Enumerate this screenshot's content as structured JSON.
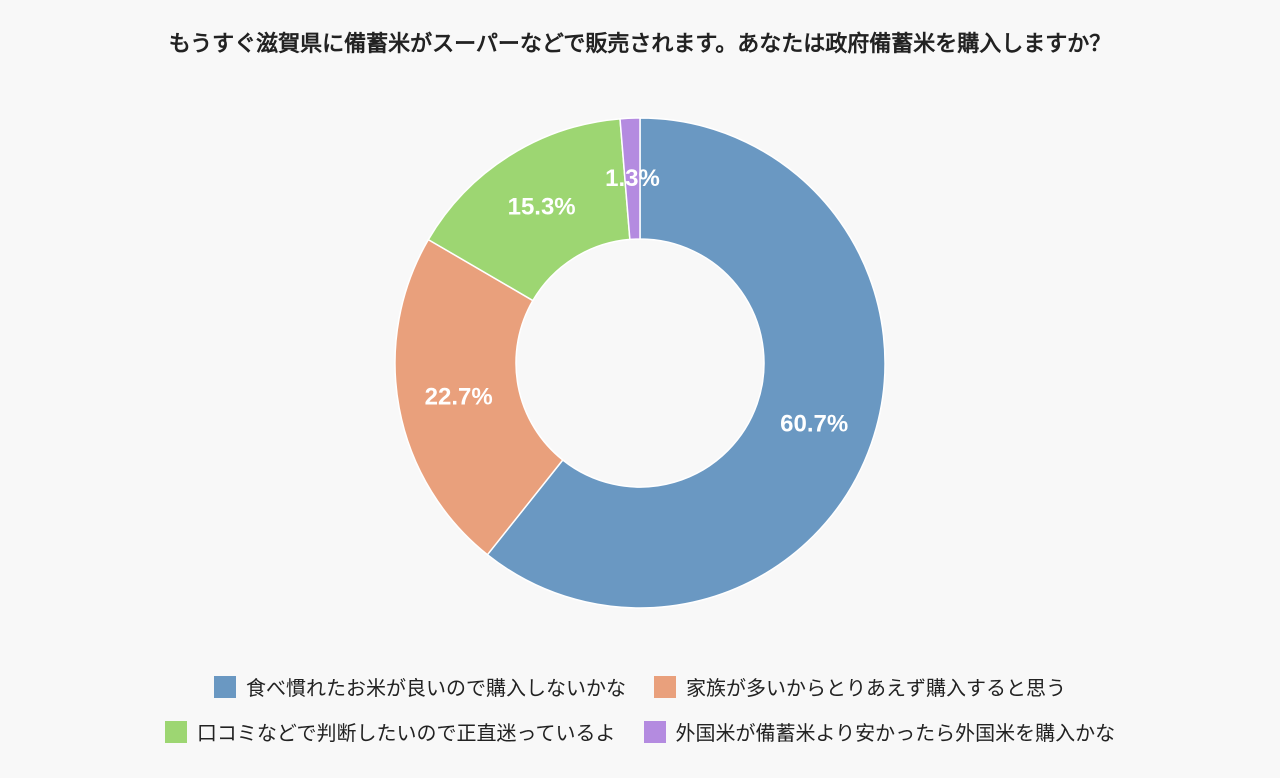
{
  "chart_data": {
    "type": "pie",
    "variant": "donut",
    "title": "もうすぐ滋賀県に備蓄米がスーパーなどで販売されます。あなたは政府備蓄米を購入しますか？",
    "legend_position": "bottom",
    "series": [
      {
        "categories": [
          "食べ慣れたお米が良いので購入しないかな",
          "家族が多いからとりあえず購入すると思う",
          "口コミなどで判断したいので正直迷っているよ",
          "外国米が備蓄米より安かったら外国米を購入かな"
        ],
        "values": [
          60.7,
          22.7,
          15.3,
          1.3
        ],
        "labels": [
          "60.7%",
          "22.7%",
          "15.3%",
          "1.3%"
        ],
        "colors": [
          "#6a98c2",
          "#e9a07c",
          "#9dd672",
          "#b48be0"
        ]
      }
    ]
  }
}
